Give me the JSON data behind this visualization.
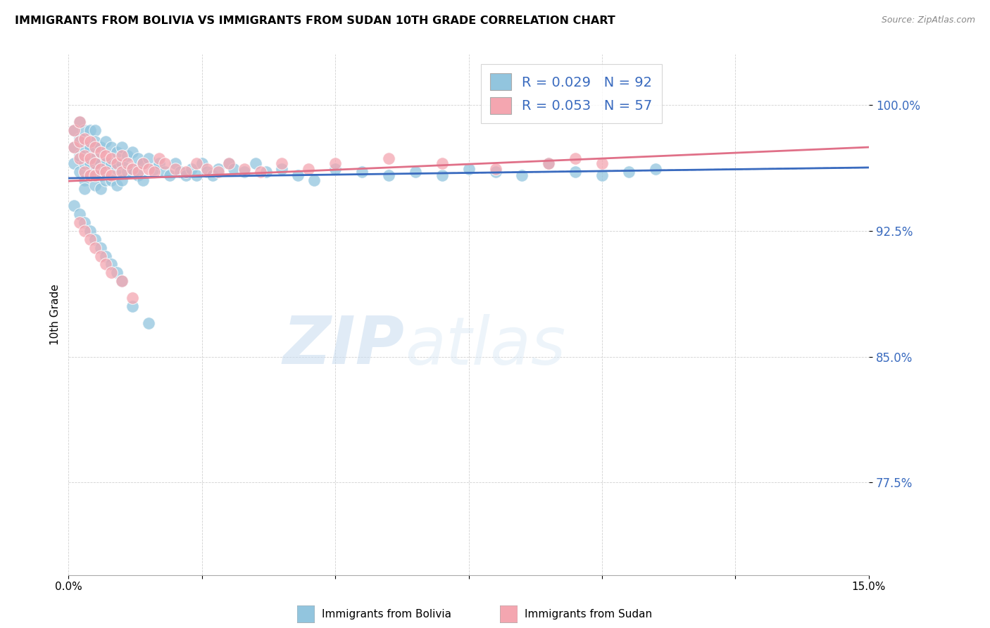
{
  "title": "IMMIGRANTS FROM BOLIVIA VS IMMIGRANTS FROM SUDAN 10TH GRADE CORRELATION CHART",
  "source": "Source: ZipAtlas.com",
  "ylabel": "10th Grade",
  "ytick_labels": [
    "100.0%",
    "92.5%",
    "85.0%",
    "77.5%"
  ],
  "ytick_values": [
    1.0,
    0.925,
    0.85,
    0.775
  ],
  "xmin": 0.0,
  "xmax": 0.15,
  "ymin": 0.72,
  "ymax": 1.03,
  "bolivia_color": "#92c5de",
  "sudan_color": "#f4a6b0",
  "bolivia_line_color": "#3a6bbf",
  "sudan_line_color": "#e07088",
  "bolivia_R": 0.029,
  "bolivia_N": 92,
  "sudan_R": 0.053,
  "sudan_N": 57,
  "legend_label_bolivia": "Immigrants from Bolivia",
  "legend_label_sudan": "Immigrants from Sudan",
  "watermark_zip": "ZIP",
  "watermark_atlas": "atlas",
  "bolivia_x": [
    0.001,
    0.001,
    0.001,
    0.002,
    0.002,
    0.002,
    0.002,
    0.003,
    0.003,
    0.003,
    0.003,
    0.003,
    0.004,
    0.004,
    0.004,
    0.004,
    0.005,
    0.005,
    0.005,
    0.005,
    0.005,
    0.006,
    0.006,
    0.006,
    0.006,
    0.007,
    0.007,
    0.007,
    0.008,
    0.008,
    0.008,
    0.009,
    0.009,
    0.009,
    0.01,
    0.01,
    0.01,
    0.011,
    0.011,
    0.012,
    0.012,
    0.013,
    0.013,
    0.014,
    0.014,
    0.015,
    0.016,
    0.017,
    0.018,
    0.019,
    0.02,
    0.021,
    0.022,
    0.023,
    0.024,
    0.025,
    0.026,
    0.027,
    0.028,
    0.03,
    0.031,
    0.033,
    0.035,
    0.037,
    0.04,
    0.043,
    0.046,
    0.05,
    0.055,
    0.06,
    0.065,
    0.07,
    0.075,
    0.08,
    0.085,
    0.09,
    0.095,
    0.1,
    0.105,
    0.11,
    0.001,
    0.002,
    0.003,
    0.004,
    0.005,
    0.006,
    0.007,
    0.008,
    0.009,
    0.01,
    0.012,
    0.015
  ],
  "bolivia_y": [
    0.985,
    0.975,
    0.965,
    0.99,
    0.98,
    0.97,
    0.96,
    0.985,
    0.975,
    0.965,
    0.955,
    0.95,
    0.985,
    0.975,
    0.965,
    0.958,
    0.985,
    0.978,
    0.968,
    0.96,
    0.952,
    0.975,
    0.965,
    0.958,
    0.95,
    0.978,
    0.965,
    0.955,
    0.975,
    0.965,
    0.955,
    0.972,
    0.962,
    0.952,
    0.975,
    0.965,
    0.955,
    0.97,
    0.96,
    0.972,
    0.962,
    0.968,
    0.958,
    0.965,
    0.955,
    0.968,
    0.962,
    0.965,
    0.96,
    0.958,
    0.965,
    0.96,
    0.958,
    0.962,
    0.958,
    0.965,
    0.96,
    0.958,
    0.962,
    0.965,
    0.962,
    0.96,
    0.965,
    0.96,
    0.962,
    0.958,
    0.955,
    0.962,
    0.96,
    0.958,
    0.96,
    0.958,
    0.962,
    0.96,
    0.958,
    0.965,
    0.96,
    0.958,
    0.96,
    0.962,
    0.94,
    0.935,
    0.93,
    0.925,
    0.92,
    0.915,
    0.91,
    0.905,
    0.9,
    0.895,
    0.88,
    0.87
  ],
  "sudan_x": [
    0.001,
    0.001,
    0.002,
    0.002,
    0.002,
    0.003,
    0.003,
    0.003,
    0.004,
    0.004,
    0.004,
    0.005,
    0.005,
    0.005,
    0.006,
    0.006,
    0.007,
    0.007,
    0.008,
    0.008,
    0.009,
    0.01,
    0.01,
    0.011,
    0.012,
    0.013,
    0.014,
    0.015,
    0.016,
    0.017,
    0.018,
    0.02,
    0.022,
    0.024,
    0.026,
    0.028,
    0.03,
    0.033,
    0.036,
    0.04,
    0.045,
    0.05,
    0.06,
    0.07,
    0.08,
    0.09,
    0.095,
    0.1,
    0.002,
    0.003,
    0.004,
    0.005,
    0.006,
    0.007,
    0.008,
    0.01,
    0.012
  ],
  "sudan_y": [
    0.985,
    0.975,
    0.99,
    0.978,
    0.968,
    0.98,
    0.97,
    0.96,
    0.978,
    0.968,
    0.958,
    0.975,
    0.965,
    0.958,
    0.972,
    0.962,
    0.97,
    0.96,
    0.968,
    0.958,
    0.965,
    0.97,
    0.96,
    0.965,
    0.962,
    0.96,
    0.965,
    0.962,
    0.96,
    0.968,
    0.965,
    0.962,
    0.96,
    0.965,
    0.962,
    0.96,
    0.965,
    0.962,
    0.96,
    0.965,
    0.962,
    0.965,
    0.968,
    0.965,
    0.962,
    0.965,
    0.968,
    0.965,
    0.93,
    0.925,
    0.92,
    0.915,
    0.91,
    0.905,
    0.9,
    0.895,
    0.885
  ],
  "grid_color": "#cccccc",
  "grid_linestyle": "--",
  "xtick_positions": [
    0.0,
    0.025,
    0.05,
    0.075,
    0.1,
    0.125,
    0.15
  ],
  "xtick_labels": [
    "0.0%",
    "",
    "",
    "",
    "",
    "",
    "15.0%"
  ]
}
